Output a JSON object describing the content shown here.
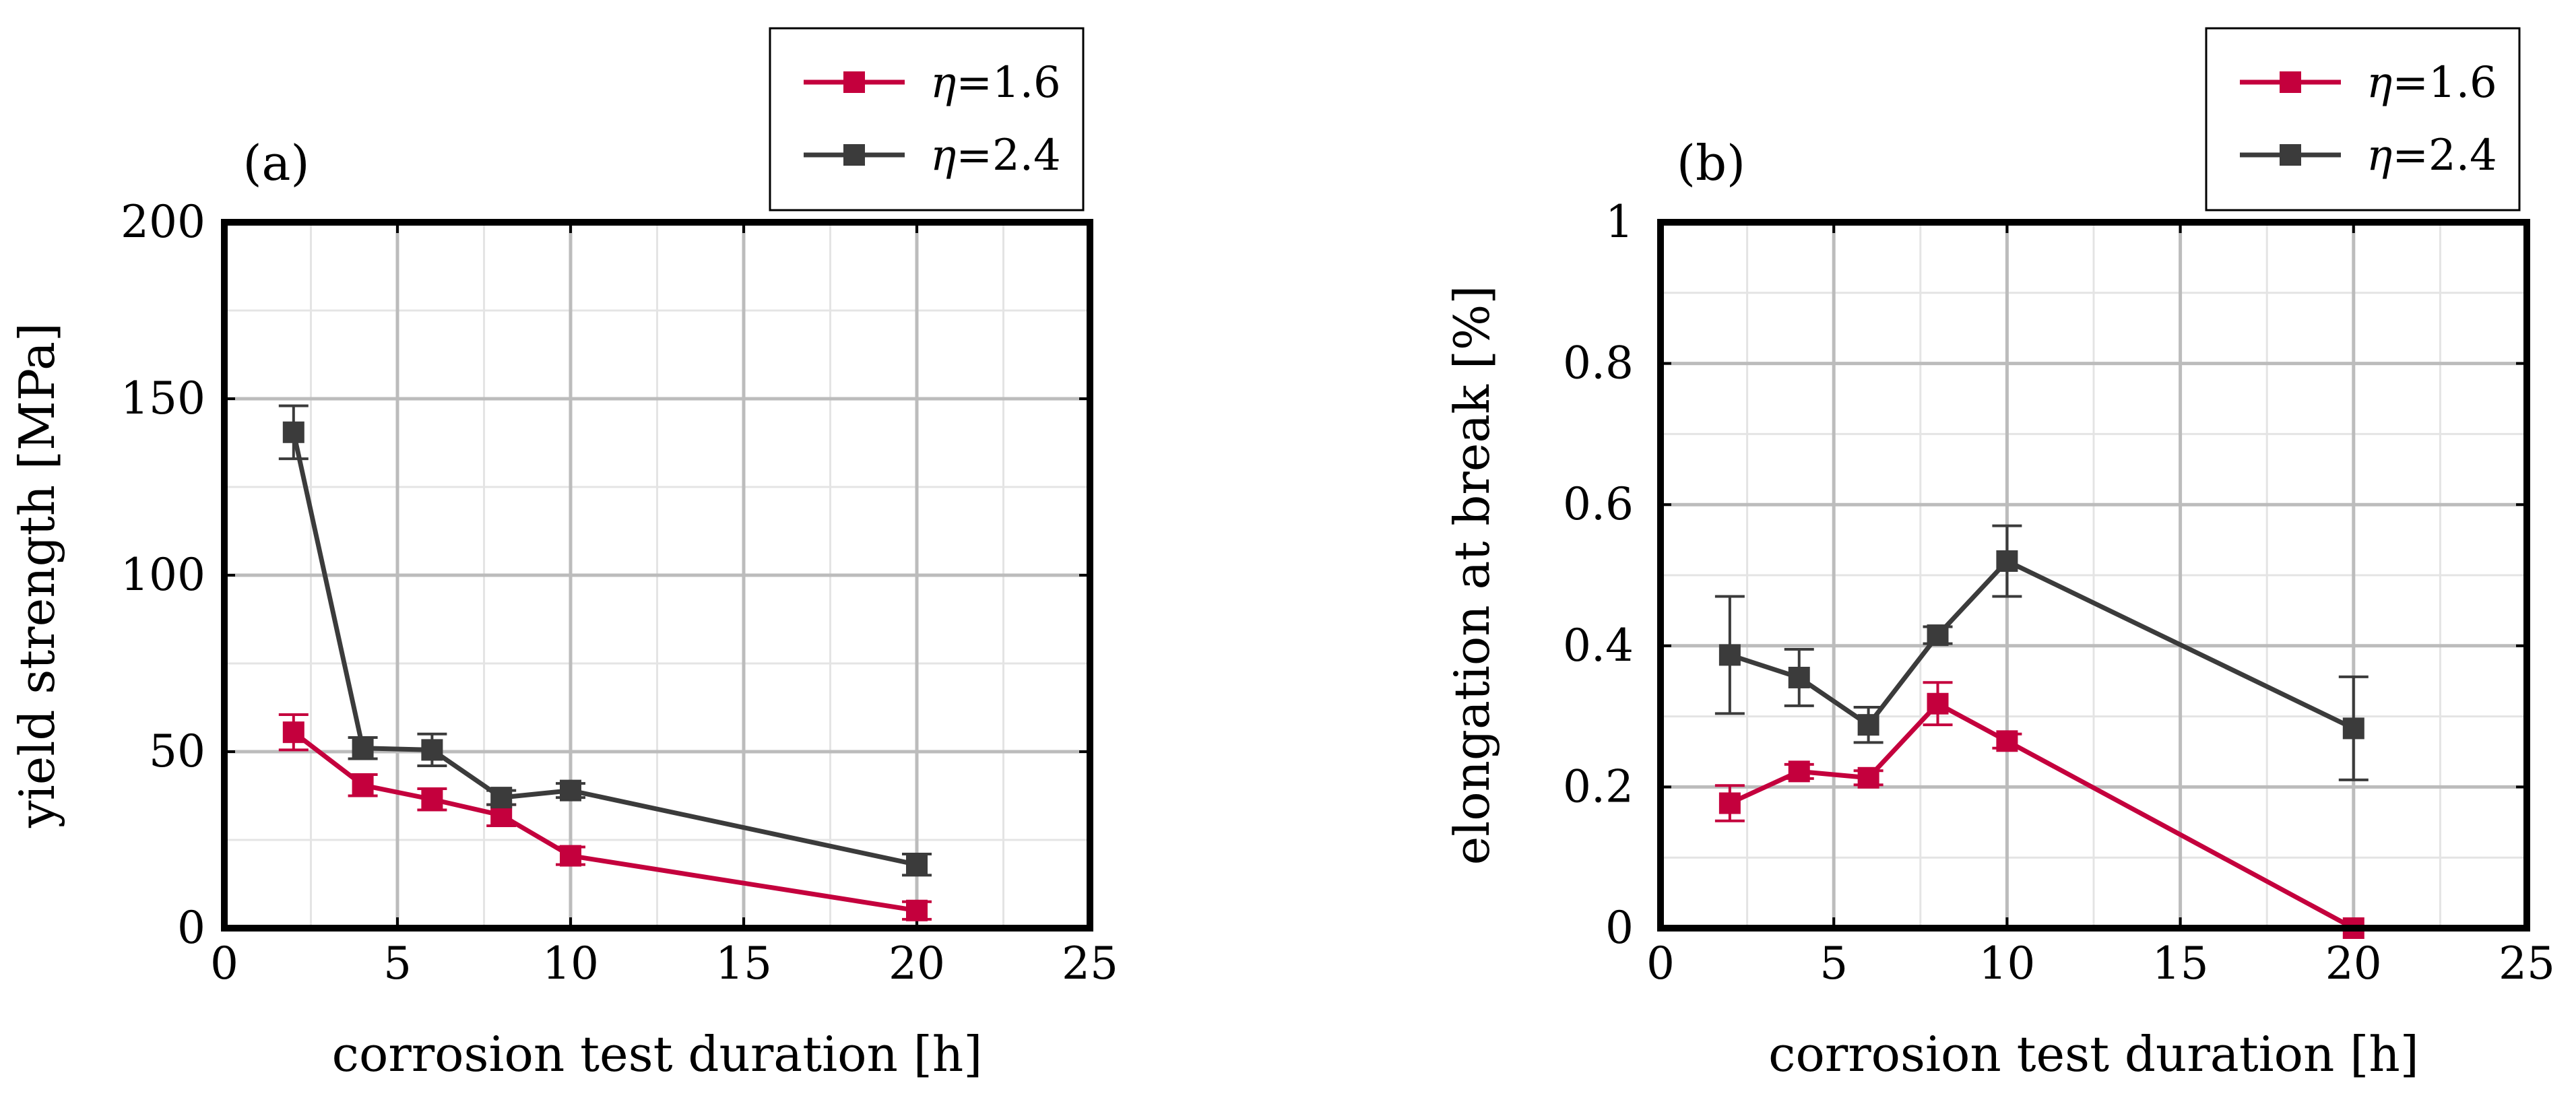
{
  "figure": {
    "colors": {
      "eta_1_6": "#c4003d",
      "eta_2_4": "#3b3b3b",
      "grid": "#bcbcbc",
      "frame": "#000000"
    }
  },
  "chart_data": [
    {
      "type": "line",
      "panel_label": "(a)",
      "xlabel": "corrosion test duration [h]",
      "ylabel": "yield strength [MPa]",
      "xlim": [
        0,
        25
      ],
      "ylim": [
        0,
        200
      ],
      "xticks": [
        0,
        5,
        10,
        15,
        20,
        25
      ],
      "xtick_labels": [
        "0",
        "5",
        "10",
        "15",
        "20",
        "25"
      ],
      "yticks": [
        0,
        50,
        100,
        150,
        200
      ],
      "ytick_labels": [
        "0",
        "50",
        "100",
        "150",
        "200"
      ],
      "grid": true,
      "legend_position": "above-top-right",
      "series": [
        {
          "name": "η=1.6",
          "legend_symbol": "η",
          "legend_value": "=1.6",
          "color": "#c4003d",
          "x": [
            2,
            4,
            6,
            8,
            10,
            20
          ],
          "y": [
            55.5,
            40.5,
            36.5,
            32,
            20.5,
            5
          ],
          "err": [
            5,
            3,
            3,
            3,
            2.5,
            2.5
          ]
        },
        {
          "name": "η=2.4",
          "legend_symbol": "η",
          "legend_value": "=2.4",
          "color": "#3b3b3b",
          "x": [
            2,
            4,
            6,
            8,
            10,
            20
          ],
          "y": [
            140.5,
            51,
            50.5,
            37,
            39,
            18
          ],
          "err": [
            7.5,
            3,
            4.5,
            2,
            2,
            3
          ]
        }
      ]
    },
    {
      "type": "line",
      "panel_label": "(b)",
      "xlabel": "corrosion test duration [h]",
      "ylabel": "elongation at break [%]",
      "xlim": [
        0,
        25
      ],
      "ylim": [
        0,
        1
      ],
      "xticks": [
        0,
        5,
        10,
        15,
        20,
        25
      ],
      "xtick_labels": [
        "0",
        "5",
        "10",
        "15",
        "20",
        "25"
      ],
      "yticks": [
        0,
        0.2,
        0.4,
        0.6,
        0.8,
        1
      ],
      "ytick_labels": [
        "0",
        "0.2",
        "0.4",
        "0.6",
        "0.8",
        "1"
      ],
      "grid": true,
      "legend_position": "above-top-right",
      "series": [
        {
          "name": "η=1.6",
          "legend_symbol": "η",
          "legend_value": "=1.6",
          "color": "#c4003d",
          "x": [
            2,
            4,
            6,
            8,
            10,
            20
          ],
          "y": [
            0.177,
            0.222,
            0.213,
            0.318,
            0.265,
            0.0
          ],
          "err": [
            0.025,
            0.01,
            0.01,
            0.03,
            0.01,
            0.0
          ]
        },
        {
          "name": "η=2.4",
          "legend_symbol": "η",
          "legend_value": "=2.4",
          "color": "#3b3b3b",
          "x": [
            2,
            4,
            6,
            8,
            10,
            20
          ],
          "y": [
            0.387,
            0.355,
            0.288,
            0.415,
            0.52,
            0.283
          ],
          "err": [
            0.083,
            0.04,
            0.025,
            0.012,
            0.05,
            0.073
          ]
        }
      ]
    }
  ]
}
